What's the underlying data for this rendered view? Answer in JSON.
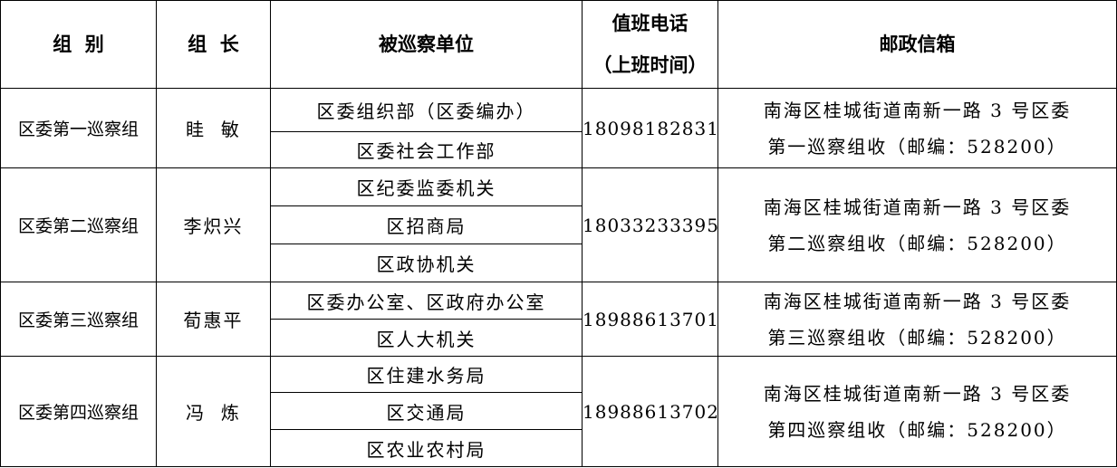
{
  "headers": {
    "group": "组  别",
    "leader": "组  长",
    "units": "被巡察单位",
    "phone_line1": "值班电话",
    "phone_line2": "（上班时间）",
    "mailbox": "邮政信箱"
  },
  "groups": [
    {
      "name": "区委第一巡察组",
      "leader": "眭  敏",
      "phone": "18098182831",
      "units": [
        "区委组织部（区委编办）",
        "区委社会工作部"
      ],
      "address_line1": "南海区桂城街道南新一路 3 号区委",
      "address_line2": "第一巡察组收（邮编：528200）"
    },
    {
      "name": "区委第二巡察组",
      "leader": "李炽兴",
      "phone": "18033233395",
      "units": [
        "区纪委监委机关",
        "区招商局",
        "区政协机关"
      ],
      "address_line1": "南海区桂城街道南新一路 3 号区委",
      "address_line2": "第二巡察组收（邮编：528200）"
    },
    {
      "name": "区委第三巡察组",
      "leader": "荀惠平",
      "phone": "18988613701",
      "units": [
        "区委办公室、区政府办公室",
        "区人大机关"
      ],
      "address_line1": "南海区桂城街道南新一路 3 号区委",
      "address_line2": "第三巡察组收（邮编：528200）"
    },
    {
      "name": "区委第四巡察组",
      "leader": "冯  炼",
      "phone": "18988613702",
      "units": [
        "区住建水务局",
        "区交通局",
        "区农业农村局"
      ],
      "address_line1": "南海区桂城街道南新一路 3 号区委",
      "address_line2": "第四巡察组收（邮编：528200）"
    }
  ]
}
